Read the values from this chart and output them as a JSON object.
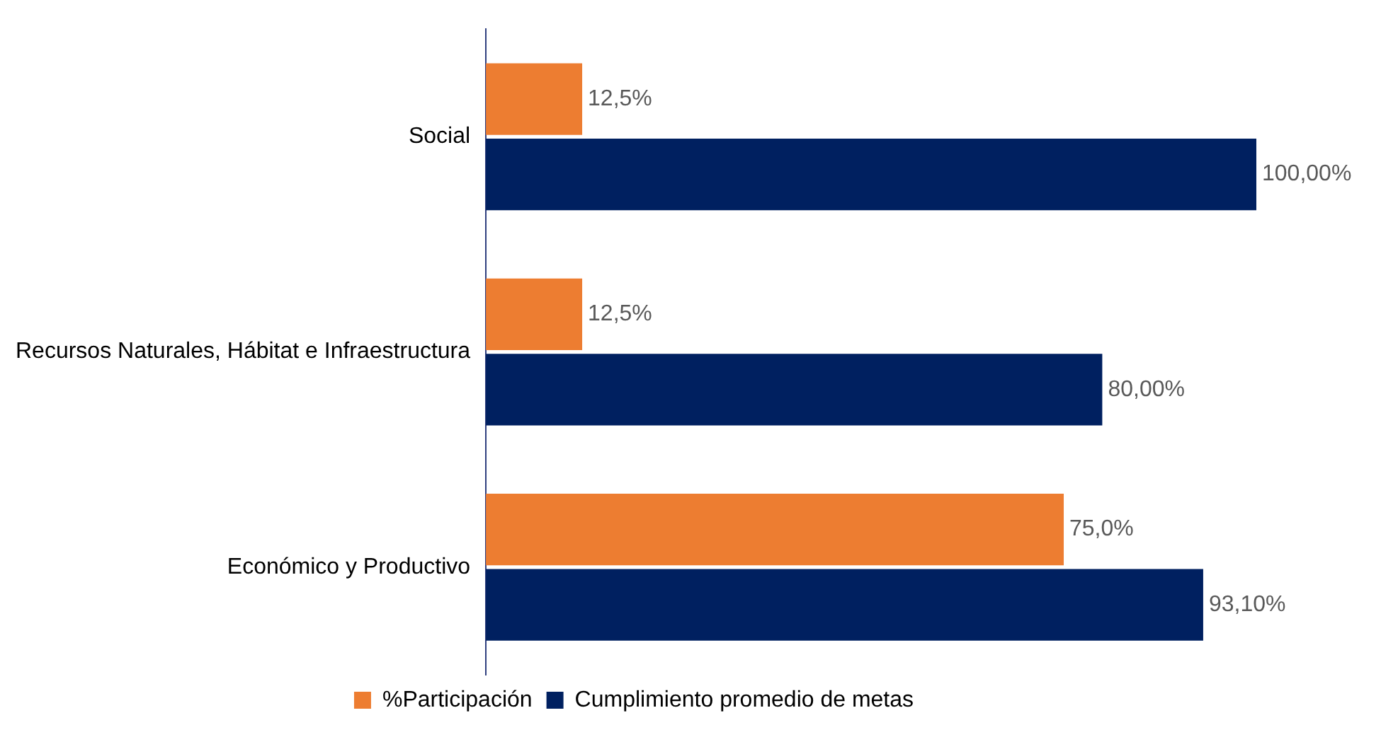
{
  "chart_data": {
    "type": "bar",
    "orientation": "horizontal",
    "categories": [
      "Social",
      "Recursos Naturales, Hábitat e Infraestructura",
      "Económico y Productivo"
    ],
    "series": [
      {
        "name": "%Participación",
        "color": "#ed7d31",
        "values": [
          12.5,
          12.5,
          75.0
        ],
        "value_labels": [
          "12,5%",
          "12,5%",
          "75,0%"
        ]
      },
      {
        "name": "Cumplimiento promedio de metas",
        "color": "#002060",
        "values": [
          100,
          80,
          93.1
        ],
        "value_labels": [
          "100,00%",
          "80,00%",
          "93,10%"
        ]
      }
    ],
    "legend": "bottom",
    "grid": false,
    "tick_labels": "y"
  }
}
